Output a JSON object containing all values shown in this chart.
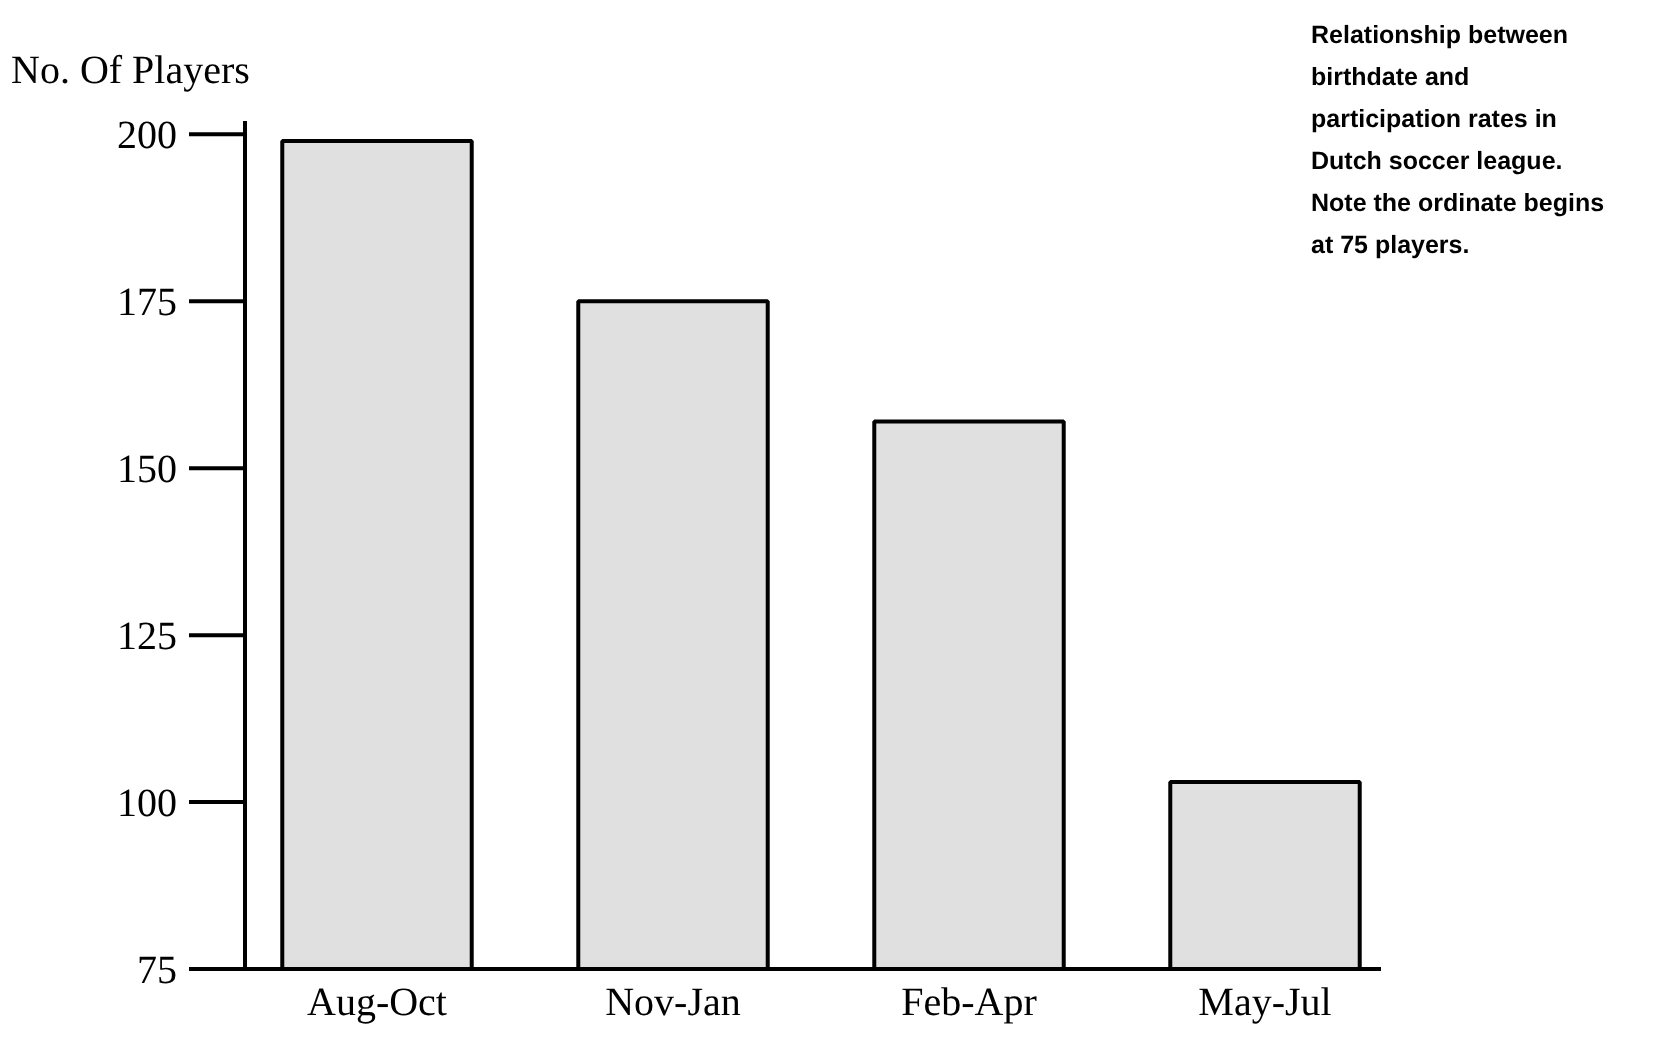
{
  "chart_data": {
    "type": "bar",
    "title": "Relationship between birthdate and participation rates in Dutch soccer league. Note the ordinate begins at 75 players.",
    "ylabel": "No. Of Players",
    "categories": [
      "Aug-Oct",
      "Nov-Jan",
      "Feb-Apr",
      "May-Jul"
    ],
    "values": [
      199,
      175,
      157,
      103
    ],
    "color": "#e0e0e0",
    "ylim": [
      75,
      202
    ],
    "yticks": [
      75,
      100,
      125,
      150,
      175,
      200
    ],
    "grid": false
  }
}
